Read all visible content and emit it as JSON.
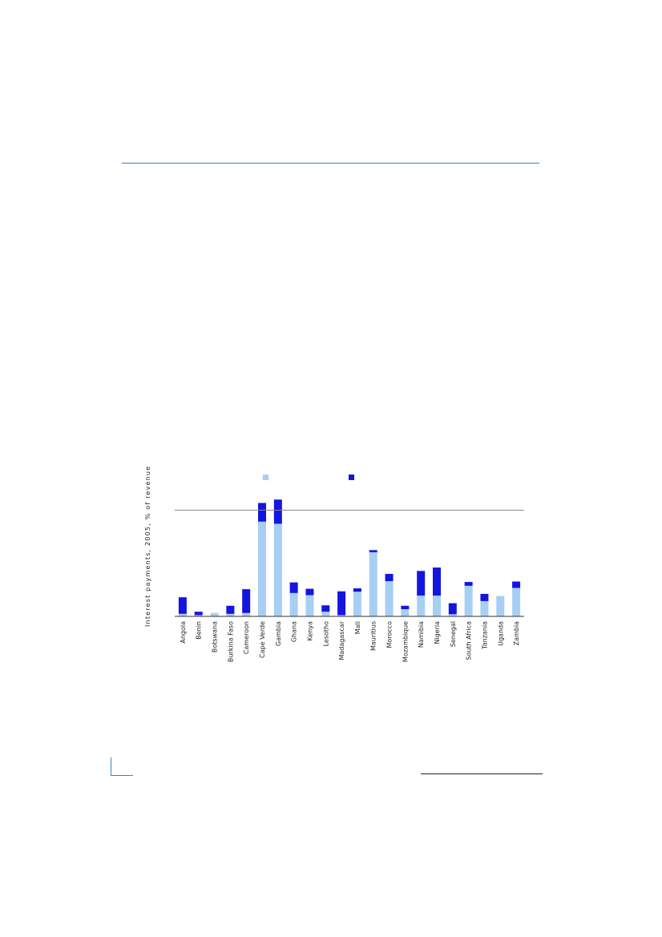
{
  "colors": {
    "rule_accent": "#3b7fc4",
    "series_1": "#a6cff3",
    "series_2": "#1515e0",
    "reference_line": "#888888",
    "axis": "#333333"
  },
  "chart_data": {
    "type": "bar",
    "stacked": true,
    "title": "",
    "xlabel": "",
    "ylabel": "Interest payments, 2005, % of revenue",
    "ylim": [
      0,
      30
    ],
    "grid": false,
    "legend_position": "top",
    "reference_line": 25,
    "categories": [
      "Angola",
      "Benin",
      "Botswana",
      "Burkina Faso",
      "Cameroon",
      "Cape Verde",
      "Gambia",
      "Ghana",
      "Kenya",
      "Lesotho",
      "Madagascar",
      "Mali",
      "Mauritius",
      "Morocco",
      "Mozambique",
      "Namibia",
      "Nigeria",
      "Senegal",
      "South Africa",
      "Tanzania",
      "Uganda",
      "Zambia"
    ],
    "series": [
      {
        "values": [
          0.6,
          0.3,
          0.8,
          0.6,
          0.8,
          22.3,
          21.8,
          5.5,
          5.0,
          1.1,
          0.3,
          5.8,
          15.1,
          8.3,
          1.7,
          4.9,
          4.9,
          0.5,
          7.2,
          3.6,
          4.8,
          6.7
        ]
      },
      {
        "values": [
          3.9,
          0.8,
          0.0,
          1.9,
          5.6,
          4.4,
          5.7,
          2.5,
          1.5,
          1.5,
          5.6,
          0.8,
          0.5,
          1.7,
          0.8,
          5.8,
          6.6,
          2.6,
          0.9,
          1.7,
          0.0,
          1.5
        ]
      }
    ]
  }
}
